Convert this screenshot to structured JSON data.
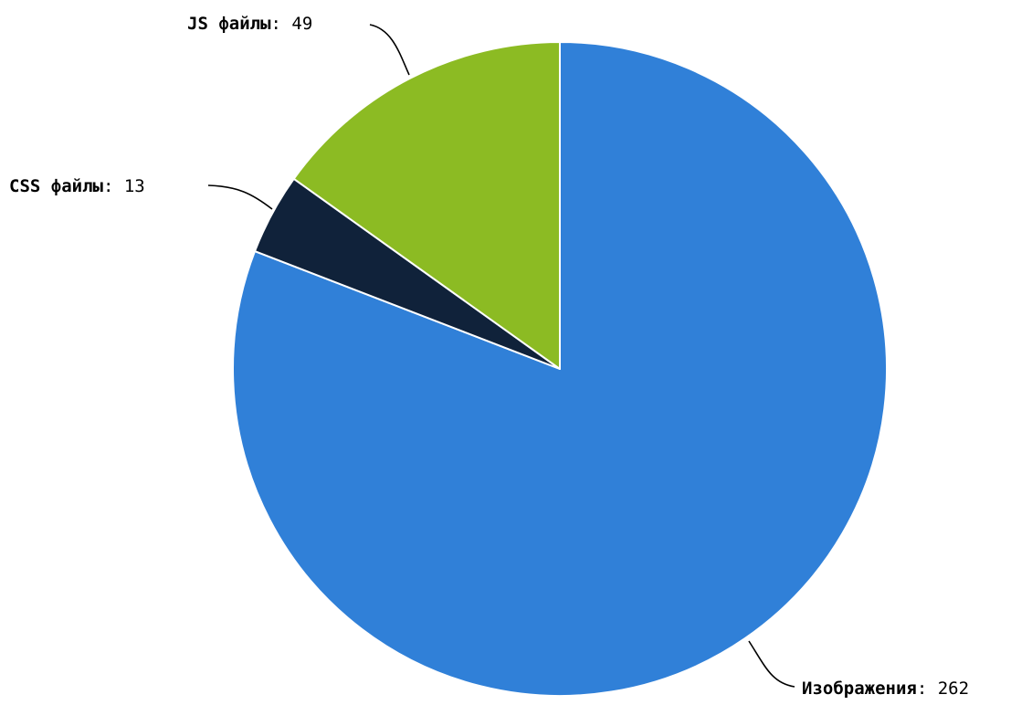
{
  "chart_data": {
    "type": "pie",
    "slices": [
      {
        "label": "Изображения",
        "value": 262,
        "color": "#3080d8"
      },
      {
        "label": "CSS файлы",
        "value": 13,
        "color": "#10223a"
      },
      {
        "label": "JS файлы",
        "value": 49,
        "color": "#8cbb23"
      }
    ],
    "start_angle_deg": 0,
    "direction": "clockwise",
    "label_separator": ":",
    "legend": "none"
  }
}
